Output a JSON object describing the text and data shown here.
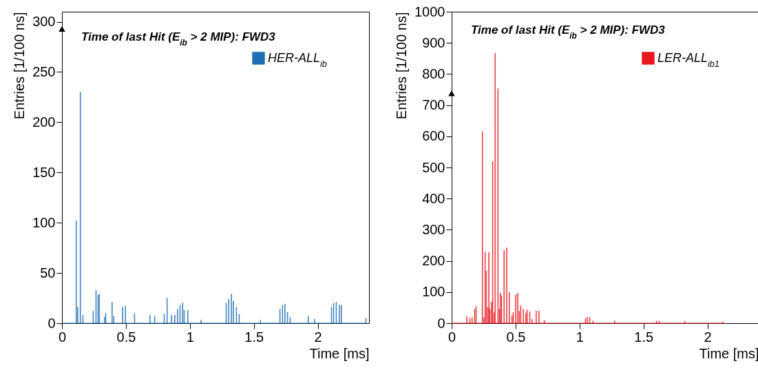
{
  "chart_data": [
    {
      "type": "histogram",
      "title": "Time of last Hit (E$_{ib}$ > 2 MIP): FWD3",
      "xlabel": "Time [ms]",
      "ylabel": "Entries [1/100 ns]",
      "xlim": [
        0,
        2.4
      ],
      "xticks": [
        0,
        0.5,
        1,
        1.5,
        2
      ],
      "ylim": [
        0,
        310
      ],
      "yticks": [
        0,
        50,
        100,
        150,
        200,
        250,
        300
      ],
      "grid": false,
      "legend": "top right",
      "bins": [
        0,
        0.11,
        0.114,
        0.121,
        0.125,
        0.142,
        0.146,
        0.162,
        0.166,
        0.242,
        0.246,
        0.264,
        0.268,
        0.28,
        0.284,
        0.29,
        0.294,
        0.331,
        0.335,
        0.34,
        0.344,
        0.39,
        0.394,
        0.403,
        0.407,
        0.472,
        0.476,
        0.494,
        0.498,
        0.565,
        0.569,
        0.686,
        0.69,
        0.723,
        0.727,
        0.797,
        0.801,
        0.82,
        0.824,
        0.854,
        0.858,
        0.88,
        0.884,
        0.902,
        0.906,
        0.921,
        0.925,
        0.941,
        0.945,
        0.953,
        0.957,
        0.982,
        0.986,
        1.085,
        1.089,
        1.281,
        1.285,
        1.301,
        1.305,
        1.322,
        1.326,
        1.338,
        1.342,
        1.362,
        1.366,
        1.383,
        1.387,
        1.549,
        1.553,
        1.702,
        1.706,
        1.722,
        1.726,
        1.741,
        1.745,
        1.761,
        1.765,
        1.781,
        1.785,
        1.923,
        1.927,
        1.973,
        1.977,
        2.105,
        2.109,
        2.121,
        2.125,
        2.142,
        2.146,
        2.166,
        2.17,
        2.182,
        2.186,
        2.374,
        2.378
      ],
      "series": [
        {
          "name": "HER-ALL$_{ib}$",
          "color": "#1f6fb4",
          "values": [
            0,
            102,
            0,
            16,
            0,
            230,
            0,
            8,
            0,
            12,
            0,
            33,
            0,
            28,
            0,
            29,
            0,
            6,
            0,
            10,
            0,
            21,
            0,
            7,
            0,
            16,
            0,
            17,
            0,
            10,
            0,
            8,
            0,
            7,
            0,
            9,
            0,
            25,
            0,
            8,
            0,
            8,
            0,
            14,
            0,
            18,
            0,
            20,
            0,
            13,
            0,
            13,
            0,
            3,
            0,
            20,
            0,
            24,
            0,
            29,
            0,
            22,
            0,
            16,
            0,
            9,
            0,
            3,
            0,
            14,
            0,
            18,
            0,
            19,
            0,
            11,
            0,
            6,
            0,
            7,
            0,
            4,
            0,
            16,
            0,
            20,
            0,
            21,
            0,
            18,
            0,
            18,
            0,
            5
          ]
        },
        {
          "type": "scatter",
          "marker": "triangle",
          "color": "#000000",
          "x": [
            0
          ],
          "values": [
            293
          ]
        }
      ]
    },
    {
      "type": "histogram",
      "title": "Time of last Hit (E$_{ib}$ > 2 MIP): FWD3",
      "xlabel": "Time [ms]",
      "ylabel": "Entries [1/100 ns]",
      "xlim": [
        0,
        2.4
      ],
      "xticks": [
        0,
        0.5,
        1,
        1.5,
        2
      ],
      "ylim": [
        0,
        1000
      ],
      "yticks": [
        0,
        100,
        200,
        300,
        400,
        500,
        600,
        700,
        800,
        900,
        1000
      ],
      "grid": false,
      "legend": "top right",
      "bins": [
        0,
        0.117,
        0.121,
        0.141,
        0.145,
        0.158,
        0.162,
        0.178,
        0.182,
        0.189,
        0.193,
        0.239,
        0.243,
        0.249,
        0.253,
        0.26,
        0.264,
        0.269,
        0.273,
        0.28,
        0.284,
        0.289,
        0.293,
        0.297,
        0.301,
        0.31,
        0.314,
        0.319,
        0.323,
        0.33,
        0.334,
        0.338,
        0.342,
        0.36,
        0.364,
        0.371,
        0.375,
        0.379,
        0.383,
        0.388,
        0.392,
        0.408,
        0.412,
        0.429,
        0.433,
        0.449,
        0.453,
        0.47,
        0.474,
        0.479,
        0.483,
        0.499,
        0.503,
        0.515,
        0.519,
        0.527,
        0.531,
        0.538,
        0.542,
        0.559,
        0.563,
        0.579,
        0.583,
        0.588,
        0.592,
        0.609,
        0.613,
        0.627,
        0.631,
        0.659,
        0.663,
        0.681,
        0.685,
        0.723,
        0.727,
        1.044,
        1.048,
        1.059,
        1.063,
        1.078,
        1.082,
        1.103,
        1.107,
        1.272,
        1.276,
        1.599,
        1.603,
        1.62,
        1.624,
        1.82,
        1.824,
        2.119,
        2.123
      ],
      "series": [
        {
          "name": "LER-ALL$_{ib1}$",
          "color": "#e8191f",
          "values": [
            0,
            22,
            0,
            16,
            0,
            18,
            0,
            45,
            0,
            54,
            0,
            615,
            0,
            18,
            0,
            229,
            0,
            167,
            0,
            51,
            0,
            227,
            0,
            45,
            0,
            68,
            0,
            519,
            0,
            34,
            0,
            867,
            0,
            753,
            0,
            45,
            0,
            97,
            0,
            88,
            0,
            234,
            0,
            242,
            0,
            99,
            0,
            24,
            0,
            35,
            0,
            91,
            0,
            96,
            0,
            38,
            0,
            56,
            0,
            45,
            0,
            32,
            0,
            43,
            0,
            37,
            0,
            13,
            0,
            40,
            0,
            39,
            0,
            9,
            0,
            15,
            0,
            20,
            0,
            19,
            0,
            7,
            0,
            7,
            0,
            7,
            0,
            7,
            0,
            6,
            0,
            5
          ]
        },
        {
          "type": "scatter",
          "marker": "triangle",
          "color": "#000000",
          "x": [
            0
          ],
          "values": [
            738
          ]
        }
      ]
    }
  ]
}
